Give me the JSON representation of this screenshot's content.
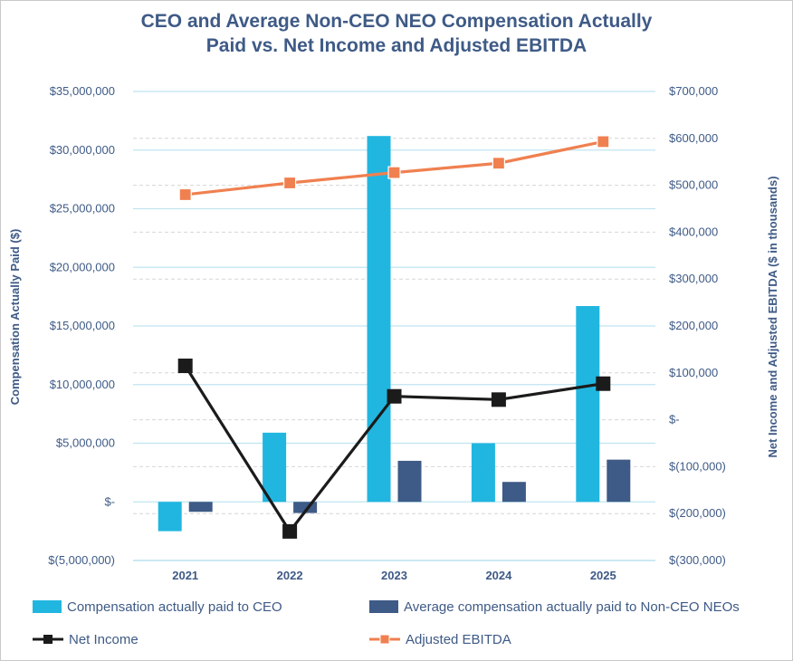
{
  "chart_data": {
    "type": "bar",
    "title_lines": [
      "CEO and Average Non-CEO NEO Compensation Actually",
      "Paid vs. Net Income and Adjusted EBITDA"
    ],
    "categories": [
      "2021",
      "2022",
      "2023",
      "2024",
      "2025"
    ],
    "ylabel_left": "Compensation Actually Paid ($)",
    "ylabel_right": "Net Income and Adjusted EBITDA ($ in thousands)",
    "ylim_left": [
      -5000000,
      35000000
    ],
    "ylim_right": [
      -300000,
      700000
    ],
    "left_ticks": [
      {
        "v": 35000000,
        "label": "$35,000,000"
      },
      {
        "v": 30000000,
        "label": "$30,000,000"
      },
      {
        "v": 25000000,
        "label": "$25,000,000"
      },
      {
        "v": 20000000,
        "label": "$20,000,000"
      },
      {
        "v": 15000000,
        "label": "$15,000,000"
      },
      {
        "v": 10000000,
        "label": "$10,000,000"
      },
      {
        "v": 5000000,
        "label": "$5,000,000"
      },
      {
        "v": 0,
        "label": "$-"
      },
      {
        "v": -5000000,
        "label": "$(5,000,000)"
      }
    ],
    "right_ticks": [
      {
        "v": 700000,
        "label": "$700,000"
      },
      {
        "v": 600000,
        "label": "$600,000"
      },
      {
        "v": 500000,
        "label": "$500,000"
      },
      {
        "v": 400000,
        "label": "$400,000"
      },
      {
        "v": 300000,
        "label": "$300,000"
      },
      {
        "v": 200000,
        "label": "$200,000"
      },
      {
        "v": 100000,
        "label": "$100,000"
      },
      {
        "v": 0,
        "label": "$-"
      },
      {
        "v": -100000,
        "label": "$(100,000)"
      },
      {
        "v": -200000,
        "label": "$(200,000)"
      },
      {
        "v": -300000,
        "label": "$(300,000)"
      }
    ],
    "series": [
      {
        "name": "Compensation actually paid to CEO",
        "type": "bar",
        "axis": "left",
        "color": "#21b6e0",
        "values": [
          -2500000,
          5900000,
          31200000,
          5000000,
          16700000
        ]
      },
      {
        "name": "Average compensation actually paid to Non-CEO NEOs",
        "type": "bar",
        "axis": "left",
        "color": "#3e5a86",
        "values": [
          -850000,
          -950000,
          3500000,
          1700000,
          3600000
        ]
      },
      {
        "name": "Net Income",
        "type": "line",
        "axis": "right",
        "color": "#1b1b1b",
        "values": [
          115000,
          -238000,
          50000,
          43000,
          77000
        ]
      },
      {
        "name": "Adjusted EBITDA",
        "type": "line",
        "axis": "right",
        "color": "#f08050",
        "values": [
          480000,
          505000,
          527000,
          547000,
          593000
        ]
      }
    ],
    "grid": true,
    "legend_position": "bottom"
  }
}
